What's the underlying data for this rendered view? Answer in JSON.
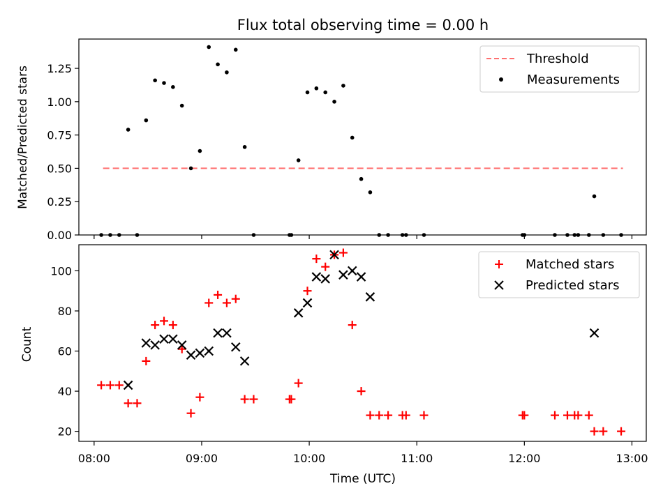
{
  "chart_data": {
    "title": "Flux total observing time = 0.00 h",
    "xlabel": "Time (UTC)",
    "x_ticks": [
      "08:00",
      "09:00",
      "10:00",
      "11:00",
      "12:00",
      "13:00"
    ],
    "panels": [
      {
        "id": "ratio",
        "type": "scatter",
        "ylabel": "Matched/Predicted stars",
        "ylim": [
          0,
          1.47
        ],
        "y_ticks": [
          "0.00",
          "0.25",
          "0.50",
          "0.75",
          "1.00",
          "1.25"
        ],
        "legend_position": "top-right",
        "threshold": {
          "name": "Threshold",
          "value": 0.5,
          "x_start": "08:05",
          "x_end": "12:55",
          "color": "#ff7070"
        },
        "series": [
          {
            "name": "Measurements",
            "color": "#000000",
            "marker": "dot",
            "points": [
              [
                "08:04",
                0.0
              ],
              [
                "08:09",
                0.0
              ],
              [
                "08:14",
                0.0
              ],
              [
                "08:19",
                0.79
              ],
              [
                "08:24",
                0.0
              ],
              [
                "08:29",
                0.86
              ],
              [
                "08:34",
                1.16
              ],
              [
                "08:39",
                1.14
              ],
              [
                "08:44",
                1.11
              ],
              [
                "08:49",
                0.97
              ],
              [
                "08:54",
                0.5
              ],
              [
                "08:59",
                0.63
              ],
              [
                "09:04",
                1.41
              ],
              [
                "09:09",
                1.28
              ],
              [
                "09:14",
                1.22
              ],
              [
                "09:19",
                1.39
              ],
              [
                "09:24",
                0.66
              ],
              [
                "09:29",
                0.0
              ],
              [
                "09:49",
                0.0
              ],
              [
                "09:50",
                0.0
              ],
              [
                "09:54",
                0.56
              ],
              [
                "09:59",
                1.07
              ],
              [
                "10:04",
                1.1
              ],
              [
                "10:09",
                1.07
              ],
              [
                "10:14",
                1.0
              ],
              [
                "10:19",
                1.12
              ],
              [
                "10:24",
                0.73
              ],
              [
                "10:29",
                0.42
              ],
              [
                "10:34",
                0.32
              ],
              [
                "10:39",
                0.0
              ],
              [
                "10:44",
                0.0
              ],
              [
                "10:52",
                0.0
              ],
              [
                "10:54",
                0.0
              ],
              [
                "11:04",
                0.0
              ],
              [
                "11:59",
                0.0
              ],
              [
                "12:00",
                0.0
              ],
              [
                "12:17",
                0.0
              ],
              [
                "12:24",
                0.0
              ],
              [
                "12:28",
                0.0
              ],
              [
                "12:30",
                0.0
              ],
              [
                "12:36",
                0.0
              ],
              [
                "12:39",
                0.29
              ],
              [
                "12:44",
                0.0
              ],
              [
                "12:54",
                0.0
              ]
            ]
          }
        ]
      },
      {
        "id": "counts",
        "type": "scatter",
        "ylabel": "Count",
        "ylim": [
          15,
          113
        ],
        "y_ticks": [
          "20",
          "40",
          "60",
          "80",
          "100"
        ],
        "legend_position": "top-right",
        "series": [
          {
            "name": "Matched stars",
            "color": "#ff0000",
            "marker": "plus",
            "points": [
              [
                "08:04",
                43
              ],
              [
                "08:09",
                43
              ],
              [
                "08:14",
                43
              ],
              [
                "08:19",
                34
              ],
              [
                "08:24",
                34
              ],
              [
                "08:29",
                55
              ],
              [
                "08:34",
                73
              ],
              [
                "08:39",
                75
              ],
              [
                "08:44",
                73
              ],
              [
                "08:49",
                61
              ],
              [
                "08:54",
                29
              ],
              [
                "08:59",
                37
              ],
              [
                "09:04",
                84
              ],
              [
                "09:09",
                88
              ],
              [
                "09:14",
                84
              ],
              [
                "09:19",
                86
              ],
              [
                "09:24",
                36
              ],
              [
                "09:29",
                36
              ],
              [
                "09:49",
                36
              ],
              [
                "09:50",
                36
              ],
              [
                "09:54",
                44
              ],
              [
                "09:59",
                90
              ],
              [
                "10:04",
                106
              ],
              [
                "10:09",
                102
              ],
              [
                "10:14",
                108
              ],
              [
                "10:19",
                109
              ],
              [
                "10:24",
                73
              ],
              [
                "10:29",
                40
              ],
              [
                "10:34",
                28
              ],
              [
                "10:39",
                28
              ],
              [
                "10:44",
                28
              ],
              [
                "10:52",
                28
              ],
              [
                "10:54",
                28
              ],
              [
                "11:04",
                28
              ],
              [
                "11:59",
                28
              ],
              [
                "12:00",
                28
              ],
              [
                "12:17",
                28
              ],
              [
                "12:24",
                28
              ],
              [
                "12:28",
                28
              ],
              [
                "12:30",
                28
              ],
              [
                "12:36",
                28
              ],
              [
                "12:39",
                20
              ],
              [
                "12:44",
                20
              ],
              [
                "12:54",
                20
              ]
            ]
          },
          {
            "name": "Predicted stars",
            "color": "#000000",
            "marker": "x",
            "points": [
              [
                "08:19",
                43
              ],
              [
                "08:29",
                64
              ],
              [
                "08:34",
                63
              ],
              [
                "08:39",
                66
              ],
              [
                "08:44",
                66
              ],
              [
                "08:49",
                63
              ],
              [
                "08:54",
                58
              ],
              [
                "08:59",
                59
              ],
              [
                "09:04",
                60
              ],
              [
                "09:09",
                69
              ],
              [
                "09:14",
                69
              ],
              [
                "09:19",
                62
              ],
              [
                "09:24",
                55
              ],
              [
                "09:54",
                79
              ],
              [
                "09:59",
                84
              ],
              [
                "10:04",
                97
              ],
              [
                "10:09",
                96
              ],
              [
                "10:14",
                108
              ],
              [
                "10:19",
                98
              ],
              [
                "10:24",
                100
              ],
              [
                "10:29",
                97
              ],
              [
                "10:34",
                87
              ],
              [
                "12:39",
                69
              ]
            ]
          }
        ]
      }
    ]
  }
}
